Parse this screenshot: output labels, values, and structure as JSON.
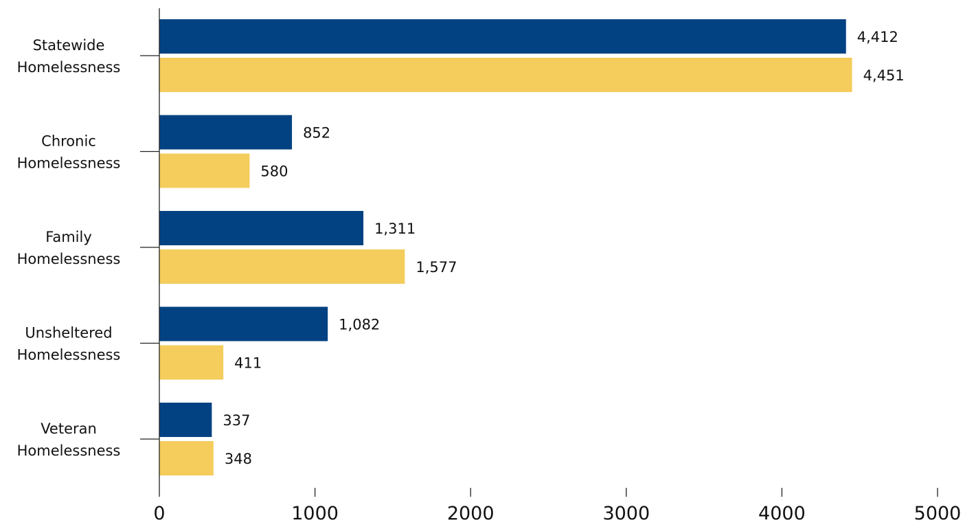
{
  "chart_data": {
    "type": "bar",
    "orientation": "horizontal",
    "categories": [
      [
        "Statewide",
        "Homelessness"
      ],
      [
        "Chronic",
        "Homelessness"
      ],
      [
        "Family",
        "Homelessness"
      ],
      [
        "Unsheltered",
        "Homelessness"
      ],
      [
        "Veteran",
        "Homelessness"
      ]
    ],
    "series": [
      {
        "color": "#034282",
        "values": [
          4412,
          852,
          1311,
          1082,
          337
        ],
        "labels": [
          "4,412",
          "852",
          "1,311",
          "1,082",
          "337"
        ]
      },
      {
        "color": "#f4cd5d",
        "values": [
          4451,
          580,
          1577,
          411,
          348
        ],
        "labels": [
          "4,451",
          "580",
          "1,577",
          "411",
          "348"
        ]
      }
    ],
    "xlim": [
      0,
      5000
    ],
    "xticks": [
      0,
      1000,
      2000,
      3000,
      4000,
      5000
    ],
    "title": "",
    "xlabel": "",
    "ylabel": "",
    "grid": false,
    "legend": "none"
  }
}
